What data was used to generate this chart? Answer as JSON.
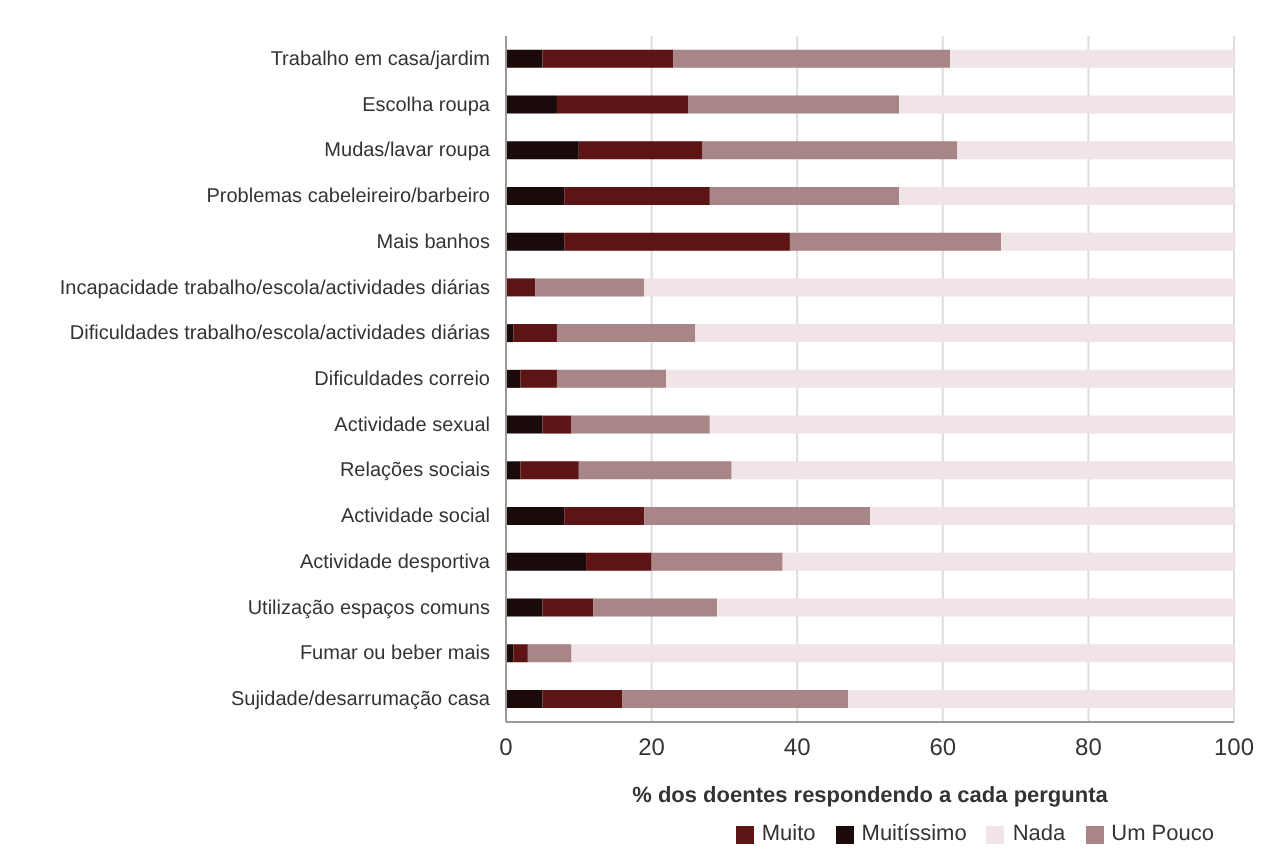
{
  "chart_data": {
    "type": "bar",
    "orientation": "horizontal",
    "stacked": true,
    "xlabel": "% dos doentes respondendo a cada pergunta",
    "categories": [
      "Trabalho em casa/jardim",
      "Escolha roupa",
      "Mudas/lavar roupa",
      "Problemas cabeleireiro/barbeiro",
      "Mais banhos",
      "Incapacidade trabalho/escola/actividades diárias",
      "Dificuldades trabalho/escola/actividades diárias",
      "Dificuldades correio",
      "Actividade sexual",
      "Relações sociais",
      "Actividade social",
      "Actividade desportiva",
      "Utilização espaços comuns",
      "Fumar ou beber mais",
      "Sujidade/desarrumação casa"
    ],
    "series": [
      {
        "name": "Muitíssimo",
        "color": "#1a0a0a",
        "values": [
          5,
          7,
          10,
          8,
          8,
          0,
          1,
          2,
          5,
          2,
          8,
          11,
          5,
          1,
          5
        ]
      },
      {
        "name": "Muito",
        "color": "#5c1414",
        "values": [
          18,
          18,
          17,
          20,
          31,
          4,
          6,
          5,
          4,
          8,
          11,
          9,
          7,
          2,
          11
        ]
      },
      {
        "name": "Um Pouco",
        "color": "#a88586",
        "values": [
          38,
          29,
          35,
          26,
          29,
          15,
          19,
          15,
          19,
          21,
          31,
          18,
          17,
          6,
          31
        ]
      },
      {
        "name": "Nada",
        "color": "#f0e4e6",
        "values": [
          39,
          46,
          38,
          46,
          32,
          81,
          74,
          78,
          72,
          69,
          50,
          62,
          71,
          91,
          53
        ]
      }
    ],
    "xlim": [
      0,
      100
    ],
    "xticks": [
      0,
      20,
      40,
      60,
      80,
      100
    ],
    "grid": "x",
    "legend": "bottom right"
  }
}
